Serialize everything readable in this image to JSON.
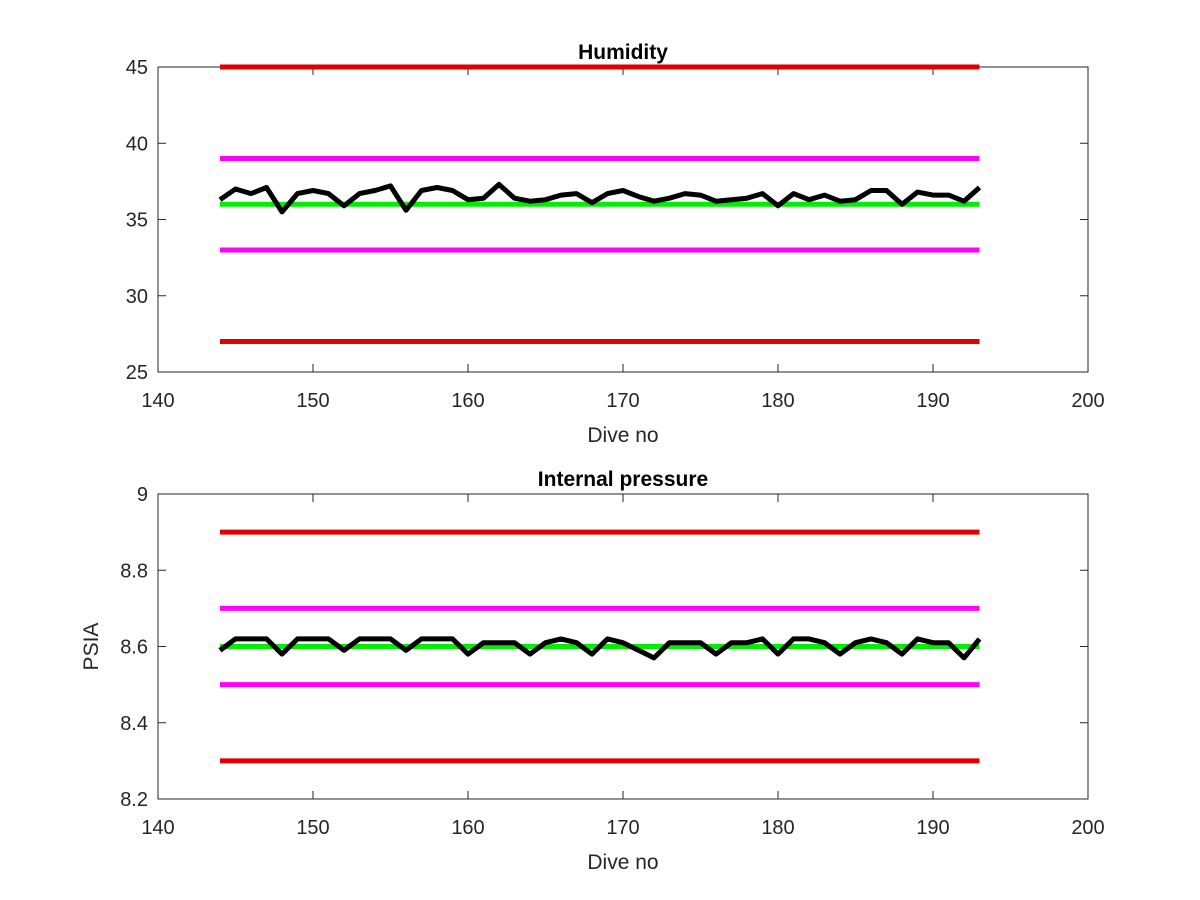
{
  "chart_data": [
    {
      "type": "line",
      "title": "Humidity",
      "xlabel": "Dive no",
      "ylabel": "",
      "xlim": [
        140,
        200
      ],
      "ylim": [
        25,
        45
      ],
      "xticks": [
        140,
        150,
        160,
        170,
        180,
        190,
        200
      ],
      "yticks": [
        25,
        30,
        35,
        40,
        45
      ],
      "grid": false,
      "series": [
        {
          "color": "#e00000",
          "x": [
            144,
            193
          ],
          "values": [
            45,
            45
          ]
        },
        {
          "color": "#ff00ff",
          "x": [
            144,
            193
          ],
          "values": [
            39,
            39
          ]
        },
        {
          "color": "#00ee00",
          "x": [
            144,
            193
          ],
          "values": [
            36,
            36
          ]
        },
        {
          "color": "#ff00ff",
          "x": [
            144,
            193
          ],
          "values": [
            33,
            33
          ]
        },
        {
          "color": "#e00000",
          "x": [
            144,
            193
          ],
          "values": [
            27,
            27
          ]
        },
        {
          "color": "#000000",
          "x": [
            144,
            145,
            146,
            147,
            148,
            149,
            150,
            151,
            152,
            153,
            154,
            155,
            156,
            157,
            158,
            159,
            160,
            161,
            162,
            163,
            164,
            165,
            166,
            167,
            168,
            169,
            170,
            171,
            172,
            173,
            174,
            175,
            176,
            177,
            178,
            179,
            180,
            181,
            182,
            183,
            184,
            185,
            186,
            187,
            188,
            189,
            190,
            191,
            192,
            193
          ],
          "values": [
            36.3,
            37.0,
            36.7,
            37.1,
            35.5,
            36.7,
            36.9,
            36.7,
            35.9,
            36.7,
            36.9,
            37.2,
            35.6,
            36.9,
            37.1,
            36.9,
            36.3,
            36.4,
            37.3,
            36.4,
            36.2,
            36.3,
            36.6,
            36.7,
            36.1,
            36.7,
            36.9,
            36.5,
            36.2,
            36.4,
            36.7,
            36.6,
            36.2,
            36.3,
            36.4,
            36.7,
            35.9,
            36.7,
            36.3,
            36.6,
            36.2,
            36.3,
            36.9,
            36.9,
            36.0,
            36.8,
            36.6,
            36.6,
            36.2,
            37.1
          ]
        }
      ]
    },
    {
      "type": "line",
      "title": "Internal pressure",
      "xlabel": "Dive no",
      "ylabel": "PSIA",
      "xlim": [
        140,
        200
      ],
      "ylim": [
        8.2,
        9
      ],
      "xticks": [
        140,
        150,
        160,
        170,
        180,
        190,
        200
      ],
      "yticks": [
        8.2,
        8.4,
        8.6,
        8.8,
        9
      ],
      "grid": false,
      "series": [
        {
          "color": "#e00000",
          "x": [
            144,
            193
          ],
          "values": [
            8.9,
            8.9
          ]
        },
        {
          "color": "#ff00ff",
          "x": [
            144,
            193
          ],
          "values": [
            8.7,
            8.7
          ]
        },
        {
          "color": "#00ee00",
          "x": [
            144,
            193
          ],
          "values": [
            8.6,
            8.6
          ]
        },
        {
          "color": "#ff00ff",
          "x": [
            144,
            193
          ],
          "values": [
            8.5,
            8.5
          ]
        },
        {
          "color": "#e00000",
          "x": [
            144,
            193
          ],
          "values": [
            8.3,
            8.3
          ]
        },
        {
          "color": "#000000",
          "x": [
            144,
            145,
            146,
            147,
            148,
            149,
            150,
            151,
            152,
            153,
            154,
            155,
            156,
            157,
            158,
            159,
            160,
            161,
            162,
            163,
            164,
            165,
            166,
            167,
            168,
            169,
            170,
            171,
            172,
            173,
            174,
            175,
            176,
            177,
            178,
            179,
            180,
            181,
            182,
            183,
            184,
            185,
            186,
            187,
            188,
            189,
            190,
            191,
            192,
            193
          ],
          "values": [
            8.59,
            8.62,
            8.62,
            8.62,
            8.58,
            8.62,
            8.62,
            8.62,
            8.59,
            8.62,
            8.62,
            8.62,
            8.59,
            8.62,
            8.62,
            8.62,
            8.58,
            8.61,
            8.61,
            8.61,
            8.58,
            8.61,
            8.62,
            8.61,
            8.58,
            8.62,
            8.61,
            8.59,
            8.57,
            8.61,
            8.61,
            8.61,
            8.58,
            8.61,
            8.61,
            8.62,
            8.58,
            8.62,
            8.62,
            8.61,
            8.58,
            8.61,
            8.62,
            8.61,
            8.58,
            8.62,
            8.61,
            8.61,
            8.57,
            8.62
          ]
        }
      ]
    }
  ]
}
